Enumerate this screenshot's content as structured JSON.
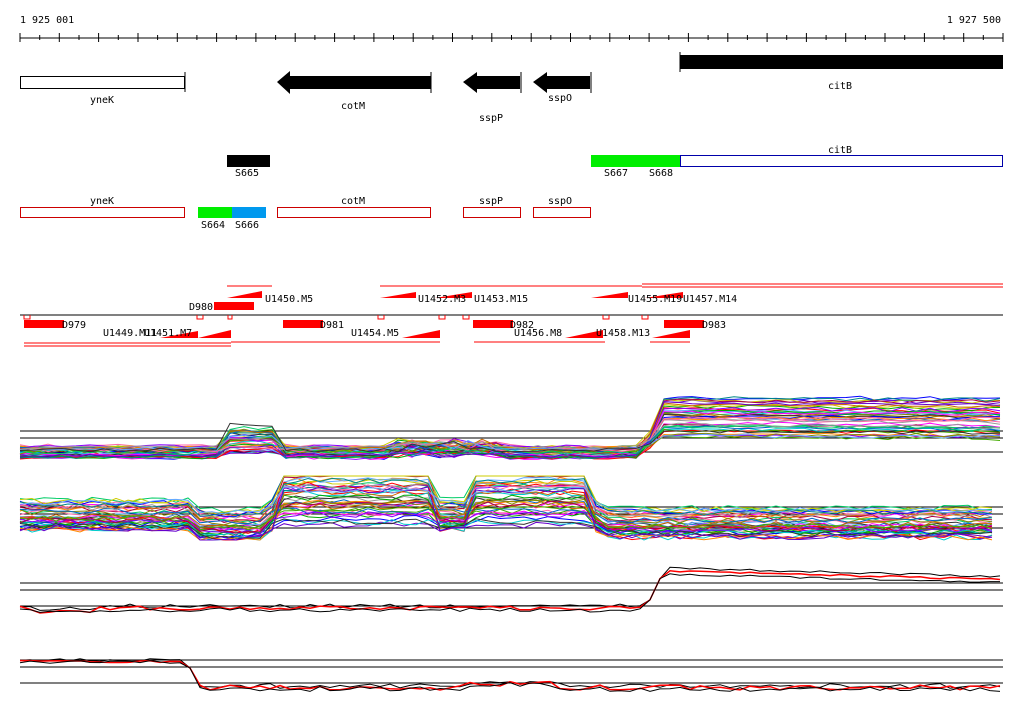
{
  "ruler": {
    "start_label": "1 925 001",
    "end_label": "1 927 500"
  },
  "colors": {
    "red": "#ff0000",
    "green": "#00ee00",
    "blue": "#0099ee",
    "black": "#000000",
    "annotation_outline": "#000000",
    "bsub_outline": "#cc0000",
    "citb_outline": "#0000aa"
  },
  "annotation_genes": [
    {
      "name": "yneK",
      "style": "outline",
      "strand": "+"
    },
    {
      "name": "cotM",
      "style": "arrow",
      "strand": "-"
    },
    {
      "name": "sspP",
      "style": "arrow",
      "strand": "-"
    },
    {
      "name": "sspO",
      "style": "arrow",
      "strand": "-"
    },
    {
      "name": "citB",
      "style": "bar",
      "strand": "+"
    }
  ],
  "segments": [
    {
      "label": "S665",
      "color": "#000000"
    },
    {
      "label": "S667",
      "color": "#00ee00"
    },
    {
      "label": "S668",
      "color": "#00ee00"
    },
    {
      "label": "S664",
      "color": "#00ee00"
    },
    {
      "label": "S666",
      "color": "#0099ee"
    }
  ],
  "citb_track_label": "citB",
  "bsub_genes": [
    "yneK",
    "cotM",
    "sspP",
    "sspO"
  ],
  "features_upper": [
    "D980",
    "U1450.M5",
    "U1452.M3",
    "U1453.M15",
    "U1455.M19",
    "U1457.M14"
  ],
  "features_lower": [
    "D979",
    "U1449.M11",
    "U1451.M7",
    "D981",
    "U1454.M5",
    "D982",
    "U1456.M8",
    "U1458.M13",
    "D983"
  ],
  "expression_panels": [
    {
      "name": "panel-1",
      "series_count": 40
    },
    {
      "name": "panel-2",
      "series_count": 40
    },
    {
      "name": "panel-3",
      "series_count": 3
    },
    {
      "name": "panel-4",
      "series_count": 3
    }
  ]
}
